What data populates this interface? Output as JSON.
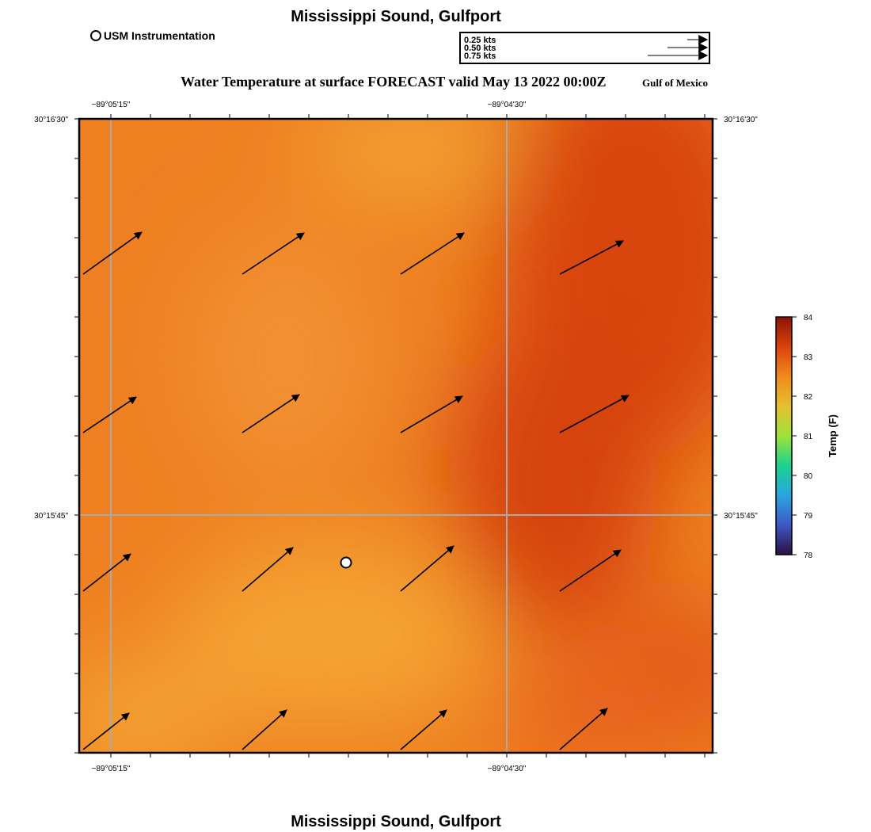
{
  "header": {
    "title": "Mississippi Sound, Gulfport",
    "subtitle": "Water Temperature at surface FORECAST valid May 13 2022 00:00Z",
    "region": "Gulf of Mexico"
  },
  "legend": {
    "instrument_label": "USM Instrumentation"
  },
  "scale": {
    "labels": [
      "0.25 kts",
      "0.50 kts",
      "0.75 kts"
    ],
    "speeds_kts": [
      0.25,
      0.5,
      0.75
    ]
  },
  "map": {
    "lon_labels": [
      "−89°05'15\"",
      "−89°04'30\""
    ],
    "lat_labels": [
      "30°16'30\"",
      "30°15'45\""
    ],
    "gridlines": true
  },
  "colorbar": {
    "label": "Temp (F)",
    "ticks": [
      "84",
      "83",
      "82",
      "81",
      "80",
      "79",
      "78"
    ],
    "min": 78,
    "max": 84,
    "colors": [
      "#2a0f3f",
      "#3f57c6",
      "#2aa6e0",
      "#1ad28f",
      "#9fe23a",
      "#e5c030",
      "#f08a1c",
      "#d9420e",
      "#8a1304"
    ]
  },
  "instrument": {
    "name": "USM Instrumentation"
  },
  "vectors": {
    "rows": [
      [
        [
          0.74,
          0.53
        ],
        [
          0.78,
          0.52
        ],
        [
          0.8,
          0.52
        ],
        [
          0.8,
          0.42
        ]
      ],
      [
        [
          0.67,
          0.45
        ],
        [
          0.72,
          0.48
        ],
        [
          0.78,
          0.46
        ],
        [
          0.87,
          0.47
        ]
      ],
      [
        [
          0.6,
          0.47
        ],
        [
          0.64,
          0.55
        ],
        [
          0.67,
          0.57
        ],
        [
          0.77,
          0.52
        ]
      ],
      [
        [
          0.58,
          0.46
        ],
        [
          0.56,
          0.5
        ],
        [
          0.58,
          0.5
        ],
        [
          0.6,
          0.52
        ]
      ]
    ]
  },
  "footer": {
    "title": "Mississippi Sound, Gulfport"
  }
}
